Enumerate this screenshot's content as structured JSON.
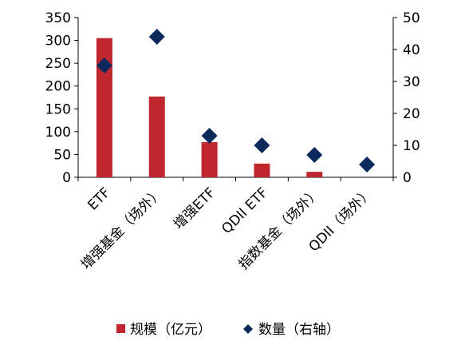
{
  "chart_data": {
    "type": "bar",
    "categories": [
      "ETF",
      "增强基金（场外）",
      "增强ETF",
      "QDII ETF",
      "指数基金（场外）",
      "QDII（场外）"
    ],
    "series": [
      {
        "name": "规模（亿元）",
        "type": "bar",
        "axis": "left",
        "color": "#C0262D",
        "values": [
          305,
          177,
          77,
          30,
          12,
          0
        ]
      },
      {
        "name": "数量（右轴）",
        "type": "scatter",
        "marker": "diamond",
        "axis": "right",
        "color": "#0B2A5B",
        "values": [
          35,
          44,
          13,
          10,
          7,
          4
        ]
      }
    ],
    "left_axis": {
      "min": 0,
      "max": 350,
      "step": 50,
      "ticks": [
        "0",
        "50",
        "100",
        "150",
        "200",
        "250",
        "300",
        "350"
      ]
    },
    "right_axis": {
      "min": 0,
      "max": 50,
      "step": 10,
      "ticks": [
        "0",
        "10",
        "20",
        "30",
        "40",
        "50"
      ]
    },
    "grid": false,
    "legend_position": "bottom"
  }
}
